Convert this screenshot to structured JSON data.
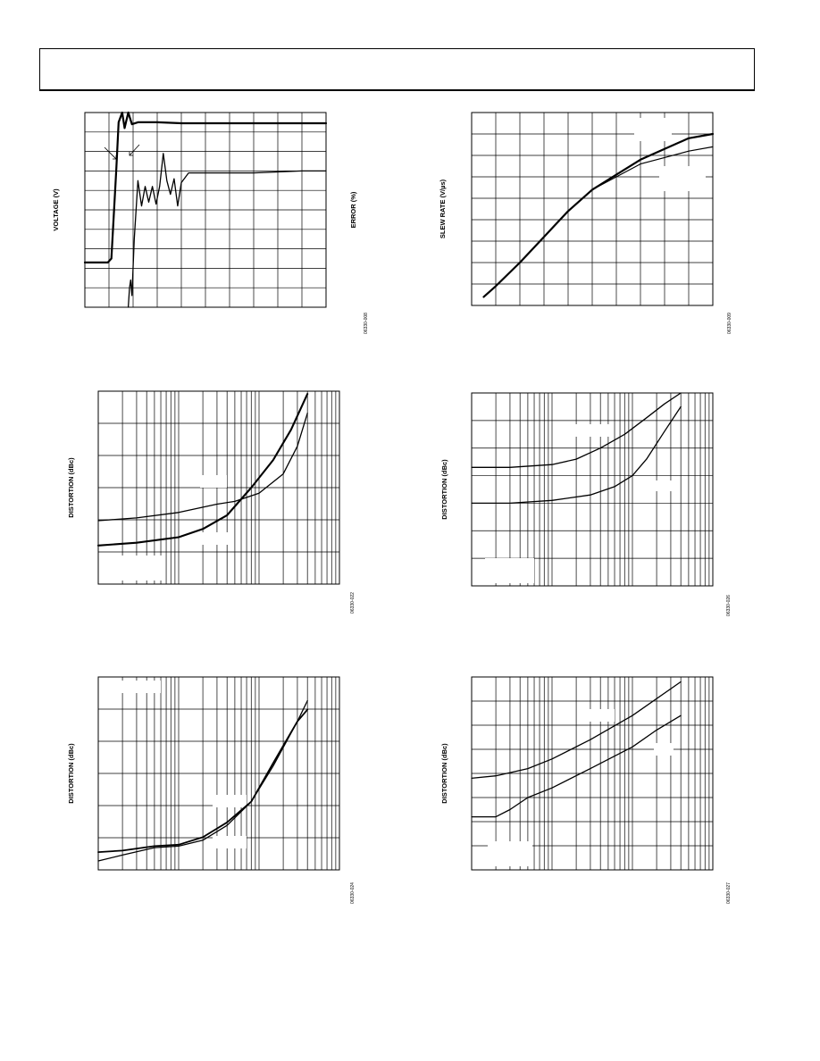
{
  "header": {
    "title": ""
  },
  "charts": [
    {
      "id": "settling",
      "ylabel": "VOLTAGE (V)",
      "ylabel_right": "ERROR (%)",
      "fig_id": "06330-008"
    },
    {
      "id": "slew",
      "ylabel": "SLEW RATE (V/µs)",
      "fig_id": "06330-009"
    },
    {
      "id": "dist1",
      "ylabel": "DISTORTION (dBc)",
      "fig_id": "06330-022"
    },
    {
      "id": "dist2",
      "ylabel": "DISTORTION (dBc)",
      "fig_id": "06330-026"
    },
    {
      "id": "dist3",
      "ylabel": "DISTORTION (dBc)",
      "fig_id": "06330-024"
    },
    {
      "id": "dist4",
      "ylabel": "DISTORTION (dBc)",
      "fig_id": "06330-027"
    }
  ],
  "chart_data": [
    {
      "type": "line",
      "grid": "linear 10x10",
      "series": [
        {
          "values": [
            [
              0,
              0.3
            ],
            [
              0.95,
              0.3
            ],
            [
              1.1,
              0.5
            ],
            [
              1.3,
              5.0
            ],
            [
              1.4,
              7.5
            ],
            [
              1.55,
              8.0
            ],
            [
              1.65,
              7.2
            ],
            [
              1.8,
              8.0
            ],
            [
              1.95,
              7.4
            ],
            [
              2.2,
              7.5
            ],
            [
              3,
              7.5
            ],
            [
              4,
              7.45
            ],
            [
              6,
              7.45
            ],
            [
              8,
              7.45
            ],
            [
              10,
              7.45
            ]
          ]
        },
        {
          "values": [
            [
              1.8,
              -2.0
            ],
            [
              1.85,
              -1.0
            ],
            [
              1.9,
              -0.6
            ],
            [
              1.95,
              -1.4
            ],
            [
              2.05,
              1.5
            ],
            [
              2.2,
              4.5
            ],
            [
              2.35,
              3.2
            ],
            [
              2.5,
              4.2
            ],
            [
              2.65,
              3.4
            ],
            [
              2.8,
              4.2
            ],
            [
              2.95,
              3.3
            ],
            [
              3.1,
              4.2
            ],
            [
              3.25,
              5.9
            ],
            [
              3.4,
              4.5
            ],
            [
              3.55,
              3.8
            ],
            [
              3.7,
              4.6
            ],
            [
              3.85,
              3.2
            ],
            [
              4.0,
              4.4
            ],
            [
              4.3,
              4.9
            ],
            [
              5,
              4.9
            ],
            [
              6,
              4.9
            ],
            [
              7,
              4.9
            ],
            [
              8,
              4.95
            ],
            [
              9,
              5.0
            ],
            [
              10,
              5.0
            ]
          ]
        }
      ],
      "xlim": [
        0,
        10
      ],
      "ylim": [
        -2,
        8
      ]
    },
    {
      "type": "line",
      "grid": "linear 10x9",
      "series": [
        {
          "values": [
            [
              0.5,
              0.4
            ],
            [
              1,
              0.9
            ],
            [
              2,
              2.0
            ],
            [
              3,
              3.2
            ],
            [
              4,
              4.4
            ],
            [
              5,
              5.4
            ],
            [
              6,
              6.1
            ],
            [
              7,
              6.8
            ],
            [
              8,
              7.3
            ],
            [
              9,
              7.8
            ],
            [
              10,
              8.0
            ]
          ]
        },
        {
          "values": [
            [
              0.5,
              0.4
            ],
            [
              1,
              0.9
            ],
            [
              2,
              2.0
            ],
            [
              3,
              3.2
            ],
            [
              4,
              4.4
            ],
            [
              5,
              5.4
            ],
            [
              6,
              6.0
            ],
            [
              7,
              6.6
            ],
            [
              8,
              6.9
            ],
            [
              9,
              7.2
            ],
            [
              10,
              7.4
            ]
          ]
        }
      ],
      "xlim": [
        0,
        10
      ],
      "ylim": [
        0,
        9
      ]
    },
    {
      "type": "line",
      "grid": "log x (3 decades), 6 y divisions",
      "series": [
        {
          "values": [
            [
              1,
              2.3
            ],
            [
              3,
              2.4
            ],
            [
              10,
              2.6
            ],
            [
              30,
              2.9
            ],
            [
              50,
              3.0
            ],
            [
              100,
              3.3
            ],
            [
              200,
              4.0
            ],
            [
              300,
              5.0
            ],
            [
              400,
              6.2
            ]
          ]
        },
        {
          "values": [
            [
              1,
              1.4
            ],
            [
              3,
              1.5
            ],
            [
              10,
              1.7
            ],
            [
              20,
              2.0
            ],
            [
              40,
              2.5
            ],
            [
              80,
              3.5
            ],
            [
              150,
              4.5
            ],
            [
              250,
              5.6
            ],
            [
              400,
              6.9
            ]
          ]
        }
      ],
      "xlim": [
        1,
        1000
      ],
      "ylim": [
        0,
        7
      ]
    },
    {
      "type": "line",
      "grid": "log x (3 decades), 7 y divisions",
      "series": [
        {
          "values": [
            [
              1,
              4.3
            ],
            [
              3,
              4.3
            ],
            [
              10,
              4.4
            ],
            [
              20,
              4.6
            ],
            [
              40,
              5.0
            ],
            [
              80,
              5.5
            ],
            [
              150,
              6.1
            ],
            [
              250,
              6.6
            ],
            [
              400,
              7.0
            ]
          ]
        },
        {
          "values": [
            [
              1,
              3.0
            ],
            [
              3,
              3.0
            ],
            [
              10,
              3.1
            ],
            [
              30,
              3.3
            ],
            [
              60,
              3.6
            ],
            [
              100,
              4.0
            ],
            [
              150,
              4.6
            ],
            [
              250,
              5.6
            ],
            [
              400,
              6.5
            ]
          ]
        }
      ],
      "xlim": [
        1,
        1000
      ],
      "ylim": [
        0,
        7
      ]
    },
    {
      "type": "line",
      "grid": "log x (3 decades), 6 y divisions",
      "series": [
        {
          "values": [
            [
              1,
              0.3
            ],
            [
              2,
              0.5
            ],
            [
              5,
              0.75
            ],
            [
              10,
              0.8
            ],
            [
              20,
              1.0
            ],
            [
              40,
              1.5
            ],
            [
              80,
              2.3
            ],
            [
              150,
              3.5
            ],
            [
              300,
              5.0
            ],
            [
              400,
              5.7
            ]
          ]
        },
        {
          "values": [
            [
              1,
              0.6
            ],
            [
              2,
              0.65
            ],
            [
              5,
              0.8
            ],
            [
              10,
              0.85
            ],
            [
              20,
              1.1
            ],
            [
              40,
              1.6
            ],
            [
              80,
              2.3
            ],
            [
              150,
              3.6
            ],
            [
              300,
              5.0
            ],
            [
              400,
              5.4
            ]
          ]
        }
      ],
      "xlim": [
        1,
        1000
      ],
      "ylim": [
        0,
        6.5
      ]
    },
    {
      "type": "line",
      "grid": "log x (3 decades), 8 y divisions",
      "series": [
        {
          "values": [
            [
              1,
              3.8
            ],
            [
              2,
              3.9
            ],
            [
              5,
              4.2
            ],
            [
              10,
              4.6
            ],
            [
              30,
              5.4
            ],
            [
              100,
              6.4
            ],
            [
              400,
              7.8
            ]
          ]
        },
        {
          "values": [
            [
              1,
              2.2
            ],
            [
              2,
              2.2
            ],
            [
              3,
              2.5
            ],
            [
              5,
              3.0
            ],
            [
              10,
              3.4
            ],
            [
              30,
              4.2
            ],
            [
              100,
              5.1
            ],
            [
              200,
              5.8
            ],
            [
              400,
              6.4
            ]
          ]
        }
      ],
      "xlim": [
        1,
        1000
      ],
      "ylim": [
        0,
        8
      ]
    }
  ]
}
